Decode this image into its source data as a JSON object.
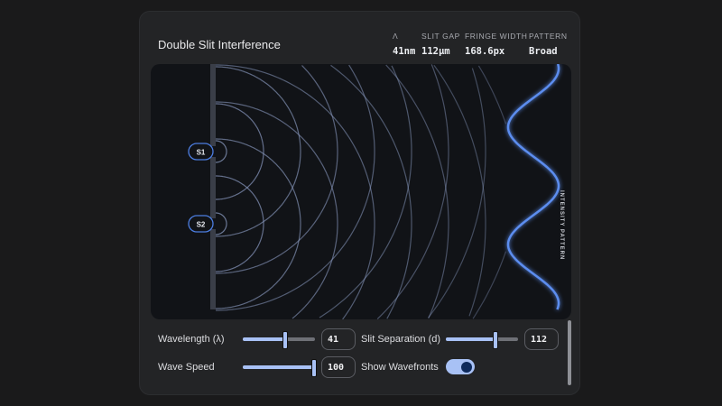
{
  "header": {
    "title": "Double Slit Interference",
    "stats": [
      {
        "label": "Λ",
        "value": "41nm"
      },
      {
        "label": "SLIT GAP",
        "value": "112µm"
      },
      {
        "label": "FRINGE WIDTH",
        "value": "168.6px"
      },
      {
        "label": "PATTERN",
        "value": "Broad"
      }
    ]
  },
  "canvas": {
    "slits": [
      "S1",
      "S2"
    ],
    "pattern_label": "INTENSITY PATTERN",
    "wave_color": "#5b8def",
    "accent": "#a8c1f5"
  },
  "controls": {
    "wavelength": {
      "label": "Wavelength (λ)",
      "value": "41",
      "fraction": 0.58
    },
    "slit_separation": {
      "label": "Slit Separation (d)",
      "value": "112",
      "fraction": 0.68
    },
    "wave_speed": {
      "label": "Wave Speed",
      "value": "100",
      "fraction": 1.0
    },
    "show_wavefronts": {
      "label": "Show Wavefronts",
      "on": true
    }
  }
}
